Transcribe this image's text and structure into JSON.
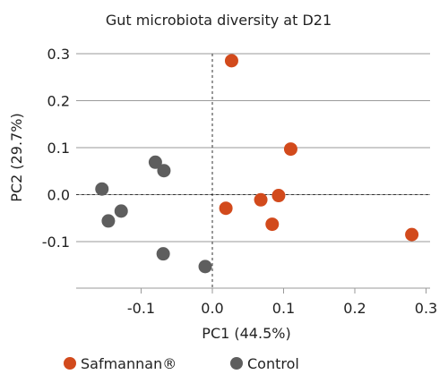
{
  "chart_data": {
    "type": "scatter",
    "title": "Gut microbiota diversity at D21",
    "xlabel": "PC1 (44.5%)",
    "ylabel": "PC2 (29.7%)",
    "xlim": [
      -0.2,
      0.3
    ],
    "ylim": [
      -0.2,
      0.3
    ],
    "x_ticks": [
      "-0.1",
      "0.0",
      "0.1",
      "0.2",
      "0.3"
    ],
    "y_ticks": [
      "0.3",
      "0.2",
      "0.1",
      "0.0",
      "-0.1"
    ],
    "grid": "horizontal",
    "legend_position": "bottom-left",
    "series": [
      {
        "name": "Safmannan®",
        "color": "#D24A1C",
        "points": [
          {
            "x": 0.027,
            "y": 0.285
          },
          {
            "x": 0.11,
            "y": 0.097
          },
          {
            "x": 0.019,
            "y": -0.029
          },
          {
            "x": 0.068,
            "y": -0.011
          },
          {
            "x": 0.093,
            "y": -0.002
          },
          {
            "x": 0.084,
            "y": -0.063
          },
          {
            "x": 0.28,
            "y": -0.085
          }
        ]
      },
      {
        "name": "Control",
        "color": "#5E5E5E",
        "points": [
          {
            "x": -0.08,
            "y": 0.069
          },
          {
            "x": -0.068,
            "y": 0.051
          },
          {
            "x": -0.155,
            "y": 0.012
          },
          {
            "x": -0.128,
            "y": -0.035
          },
          {
            "x": -0.146,
            "y": -0.056
          },
          {
            "x": -0.069,
            "y": -0.126
          },
          {
            "x": -0.01,
            "y": -0.153
          }
        ]
      }
    ]
  }
}
